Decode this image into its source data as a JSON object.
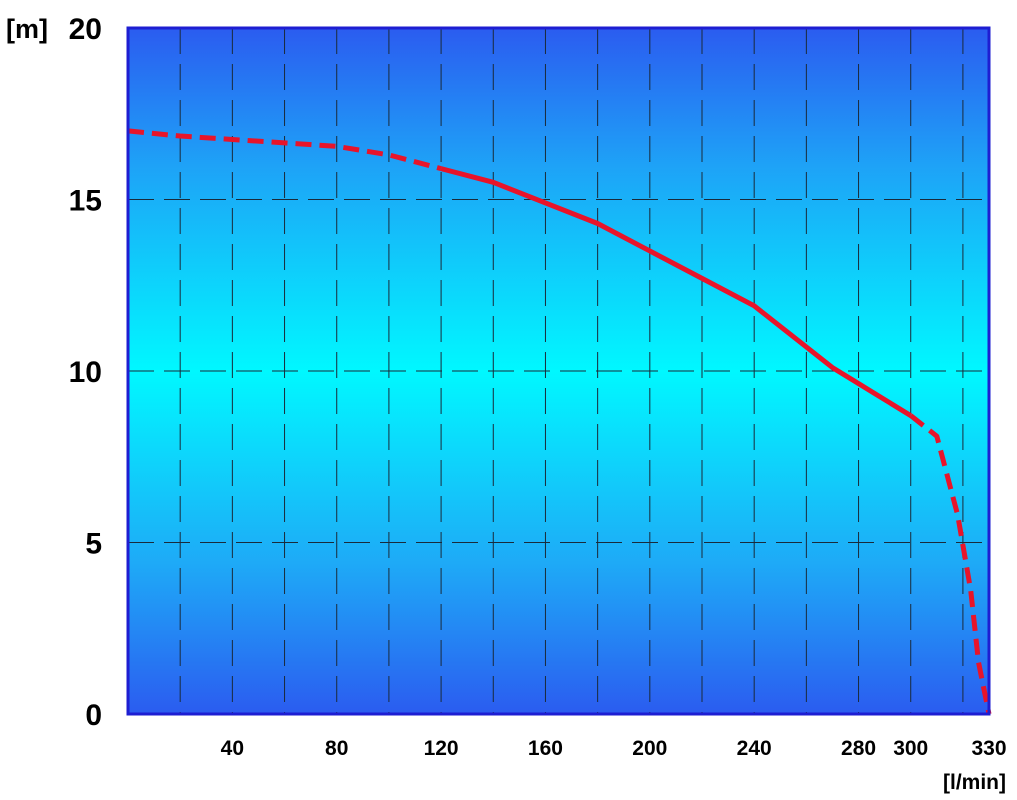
{
  "chart_data": {
    "type": "line",
    "title": "",
    "xlabel": "[l/min]",
    "ylabel": "[m]",
    "xlim": [
      0,
      330
    ],
    "ylim": [
      0,
      20
    ],
    "x_ticks": [
      40,
      80,
      120,
      160,
      200,
      240,
      280,
      300,
      330
    ],
    "y_ticks": [
      0,
      5,
      10,
      15,
      20
    ],
    "x_gridlines": [
      20,
      40,
      60,
      80,
      100,
      120,
      140,
      160,
      180,
      200,
      220,
      240,
      260,
      280,
      300,
      320
    ],
    "y_gridlines": [
      5,
      10,
      15
    ],
    "grid": true,
    "background": "vertical gradient blue-cyan-blue",
    "series": [
      {
        "segments": [
          {
            "style": "dashed",
            "x": [
              0,
              20,
              40,
              60,
              80,
              100,
              120
            ],
            "y": [
              17.0,
              16.85,
              16.75,
              16.65,
              16.55,
              16.3,
              15.9
            ]
          },
          {
            "style": "solid",
            "x": [
              120,
              140,
              160,
              180,
              200,
              220,
              240,
              255,
              270,
              285,
              300
            ],
            "y": [
              15.9,
              15.5,
              14.9,
              14.3,
              13.5,
              12.7,
              11.9,
              11.0,
              10.1,
              9.4,
              8.7
            ]
          },
          {
            "style": "dashed",
            "x": [
              300,
              310,
              318,
              323,
              326,
              330
            ],
            "y": [
              8.7,
              8.1,
              5.8,
              3.6,
              1.5,
              0.0
            ]
          }
        ]
      }
    ]
  },
  "colors": {
    "curve": "#e8142a",
    "border": "#1e1ed2",
    "gradient_edge": "#2b63f0",
    "gradient_mid": "#00f6ff",
    "grid": "#1a2a3a"
  }
}
